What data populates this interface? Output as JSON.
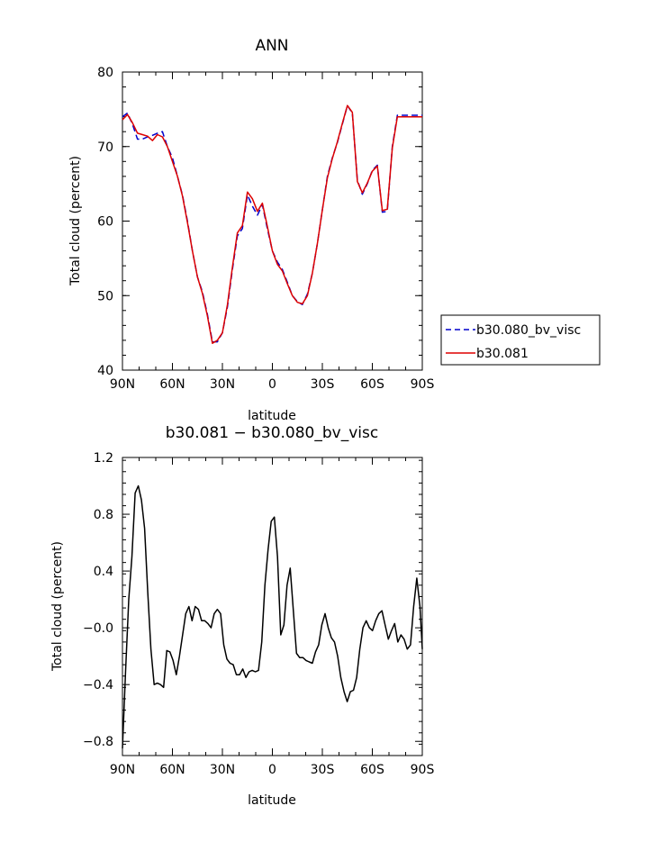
{
  "chart_data": [
    {
      "type": "line",
      "title": "ANN",
      "xlabel": "latitude",
      "ylabel": "Total cloud (percent)",
      "xlim": [
        90,
        -90
      ],
      "ylim": [
        40,
        80
      ],
      "xticks": [
        90,
        60,
        30,
        0,
        -30,
        -60,
        -90
      ],
      "xtick_labels": [
        "90N",
        "60N",
        "30N",
        "0",
        "30S",
        "60S",
        "90S"
      ],
      "yticks": [
        40,
        50,
        60,
        70,
        80
      ],
      "ytick_labels": [
        "40",
        "50",
        "60",
        "70",
        "80"
      ],
      "legend": {
        "placement": "right",
        "entries": [
          {
            "label": "b30.080_bv_visc",
            "color": "#0000cc",
            "dash": "dashed"
          },
          {
            "label": "b30.081",
            "color": "#dd0000",
            "dash": "solid"
          }
        ]
      },
      "series": [
        {
          "name": "b30.080_bv_visc",
          "color": "#0000cc",
          "style": "dashed",
          "x": [
            90,
            87,
            84,
            81,
            78,
            75,
            72,
            69,
            66,
            63,
            60,
            57,
            54,
            51,
            48,
            45,
            42,
            39,
            36,
            33,
            30,
            27,
            24,
            21,
            18,
            15,
            12,
            9,
            6,
            3,
            0,
            -3,
            -6,
            -9,
            -12,
            -15,
            -18,
            -21,
            -24,
            -27,
            -30,
            -33,
            -36,
            -39,
            -42,
            -45,
            -48,
            -51,
            -54,
            -57,
            -60,
            -63,
            -66,
            -69,
            -72,
            -75,
            -78,
            -81,
            -84,
            -87,
            -90
          ],
          "y": [
            74.0,
            74.5,
            73.0,
            71.0,
            71.0,
            71.3,
            71.5,
            71.8,
            72.0,
            70.0,
            68.5,
            66.0,
            63.5,
            60.0,
            56.0,
            52.5,
            50.5,
            47.5,
            43.8,
            43.8,
            45.0,
            48.5,
            53.5,
            58.0,
            59.0,
            63.5,
            62.0,
            60.8,
            62.2,
            59.0,
            56.0,
            54.5,
            53.5,
            51.8,
            50.0,
            49.2,
            48.8,
            50.2,
            53.0,
            57.0,
            61.5,
            66.0,
            68.5,
            70.5,
            73.0,
            75.5,
            74.5,
            65.5,
            63.6,
            65.0,
            66.8,
            67.5,
            61.2,
            61.3,
            70.0,
            74.2,
            74.2,
            74.2,
            74.2,
            74.2,
            74.2
          ]
        },
        {
          "name": "b30.081",
          "color": "#dd0000",
          "style": "solid",
          "x": [
            90,
            87,
            84,
            81,
            78,
            75,
            72,
            69,
            66,
            63,
            60,
            57,
            54,
            51,
            48,
            45,
            42,
            39,
            36,
            33,
            30,
            27,
            24,
            21,
            18,
            15,
            12,
            9,
            6,
            3,
            0,
            -3,
            -6,
            -9,
            -12,
            -15,
            -18,
            -21,
            -24,
            -27,
            -30,
            -33,
            -36,
            -39,
            -42,
            -45,
            -48,
            -51,
            -54,
            -57,
            -60,
            -63,
            -66,
            -69,
            -72,
            -75,
            -78,
            -81,
            -84,
            -87,
            -90
          ],
          "y": [
            73.6,
            74.3,
            73.2,
            71.8,
            71.6,
            71.4,
            70.8,
            71.6,
            71.3,
            70.0,
            68.0,
            66.0,
            63.4,
            59.8,
            56.0,
            52.5,
            50.3,
            47.3,
            43.6,
            44.0,
            45.0,
            48.8,
            53.8,
            58.4,
            59.4,
            63.9,
            63.0,
            61.3,
            62.4,
            59.3,
            56.0,
            54.2,
            53.3,
            51.6,
            50.0,
            49.1,
            48.9,
            50.0,
            53.0,
            57.0,
            61.5,
            65.8,
            68.4,
            70.6,
            73.1,
            75.5,
            74.6,
            65.3,
            63.8,
            65.1,
            66.7,
            67.4,
            61.4,
            61.6,
            69.8,
            74.0,
            74.0,
            74.0,
            74.0,
            74.0,
            74.0
          ]
        }
      ]
    },
    {
      "type": "line",
      "title": "b30.081 − b30.080_bv_visc",
      "xlabel": "latitude",
      "ylabel": "Total cloud (percent)",
      "xlim": [
        90,
        -90
      ],
      "ylim": [
        -0.9,
        1.2
      ],
      "xticks": [
        90,
        60,
        30,
        0,
        -30,
        -60,
        -90
      ],
      "xtick_labels": [
        "90N",
        "60N",
        "30N",
        "0",
        "30S",
        "60S",
        "90S"
      ],
      "yticks": [
        -0.8,
        -0.4,
        0.0,
        0.4,
        0.8,
        1.2
      ],
      "ytick_labels": [
        "−0.8",
        "−0.4",
        "−0.0",
        "0.4",
        "0.8",
        "1.2"
      ],
      "series": [
        {
          "color": "#000000",
          "style": "solid",
          "x": [
            90,
            88.1,
            86.2,
            84.3,
            82.4,
            80.5,
            78.6,
            76.7,
            74.8,
            72.9,
            71.0,
            69.1,
            67.2,
            65.3,
            63.4,
            61.5,
            59.6,
            57.7,
            55.8,
            53.9,
            52.0,
            50.1,
            48.2,
            46.3,
            44.4,
            42.5,
            40.6,
            38.7,
            36.8,
            34.9,
            33.0,
            31.1,
            29.2,
            27.3,
            25.4,
            23.5,
            21.6,
            19.7,
            17.8,
            15.9,
            14.0,
            12.1,
            10.2,
            8.3,
            6.4,
            4.5,
            2.6,
            0.7,
            -1.2,
            -3.1,
            -5.0,
            -6.9,
            -8.8,
            -10.7,
            -12.6,
            -14.5,
            -16.4,
            -18.3,
            -20.2,
            -22.1,
            -24.0,
            -25.9,
            -27.8,
            -29.7,
            -31.6,
            -33.5,
            -35.4,
            -37.3,
            -39.2,
            -41.1,
            -43.0,
            -44.9,
            -46.8,
            -48.7,
            -50.6,
            -52.5,
            -54.4,
            -56.3,
            -58.2,
            -60.1,
            -62.0,
            -63.9,
            -65.8,
            -67.7,
            -69.6,
            -71.5,
            -73.4,
            -75.3,
            -77.2,
            -79.1,
            -81.0,
            -82.9,
            -84.8,
            -86.7,
            -88.6,
            -90.0
          ],
          "y": [
            -0.85,
            -0.3,
            0.2,
            0.5,
            0.95,
            1.0,
            0.9,
            0.7,
            0.25,
            -0.15,
            -0.4,
            -0.39,
            -0.4,
            -0.42,
            -0.16,
            -0.17,
            -0.23,
            -0.33,
            -0.2,
            -0.05,
            0.1,
            0.15,
            0.05,
            0.15,
            0.13,
            0.05,
            0.05,
            0.03,
            0.0,
            0.1,
            0.13,
            0.1,
            -0.12,
            -0.22,
            -0.25,
            -0.26,
            -0.33,
            -0.33,
            -0.29,
            -0.35,
            -0.31,
            -0.3,
            -0.31,
            -0.3,
            -0.1,
            0.3,
            0.55,
            0.75,
            0.78,
            0.5,
            -0.05,
            0.02,
            0.3,
            0.42,
            0.12,
            -0.18,
            -0.21,
            -0.21,
            -0.23,
            -0.24,
            -0.25,
            -0.17,
            -0.12,
            0.02,
            0.1,
            0.0,
            -0.07,
            -0.1,
            -0.2,
            -0.35,
            -0.45,
            -0.52,
            -0.45,
            -0.44,
            -0.35,
            -0.15,
            0.0,
            0.05,
            0.0,
            -0.02,
            0.05,
            0.1,
            0.12,
            0.02,
            -0.08,
            -0.02,
            0.03,
            -0.1,
            -0.05,
            -0.08,
            -0.15,
            -0.12,
            0.15,
            0.35,
            0.15,
            -0.15
          ]
        }
      ]
    }
  ]
}
